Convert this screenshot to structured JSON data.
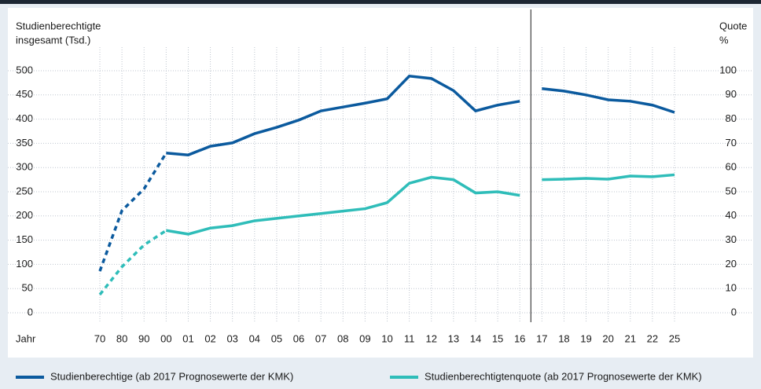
{
  "chart_data": {
    "type": "line",
    "y_label": [
      "Studienberechtigte",
      "insgesamt (Tsd.)"
    ],
    "y2_label": [
      "Quote",
      "%"
    ],
    "x_label": "Jahr",
    "categories": [
      "70",
      "80",
      "90",
      "00",
      "01",
      "02",
      "03",
      "04",
      "05",
      "06",
      "07",
      "08",
      "09",
      "10",
      "11",
      "12",
      "13",
      "14",
      "15",
      "16",
      "17",
      "18",
      "19",
      "20",
      "21",
      "22",
      "25"
    ],
    "dashed_until_category": "00",
    "forecast_from_category": "17",
    "series": [
      {
        "name": "Studienberechtige (ab 2017 Prognosewerte der KMK)",
        "color": "#0b5a9e",
        "axis": "y",
        "values": [
          86,
          211,
          256,
          330,
          326,
          344,
          351,
          370,
          383,
          398,
          417,
          425,
          433,
          442,
          489,
          484,
          459,
          417,
          429,
          437,
          463,
          458,
          450,
          440,
          437,
          429,
          414
        ]
      },
      {
        "name": "Studienberechtigtenquote (ab 2017 Prognosewerte der KMK)",
        "color": "#2fbdb9",
        "axis": "y2",
        "values": [
          7.5,
          19,
          28,
          34,
          32.5,
          35,
          36,
          38,
          39,
          40,
          41,
          42,
          43,
          45.5,
          53.5,
          56,
          55,
          49.5,
          50,
          48.5,
          55,
          55.2,
          55.5,
          55.2,
          56.5,
          56.2,
          57
        ]
      }
    ],
    "ylim": [
      0,
      500
    ],
    "yticks": [
      0,
      50,
      100,
      150,
      200,
      250,
      300,
      350,
      400,
      450,
      500
    ],
    "y2lim": [
      0,
      100
    ],
    "y2ticks": [
      0,
      10,
      20,
      30,
      40,
      50,
      60,
      70,
      80,
      90,
      100
    ],
    "grid": true
  }
}
